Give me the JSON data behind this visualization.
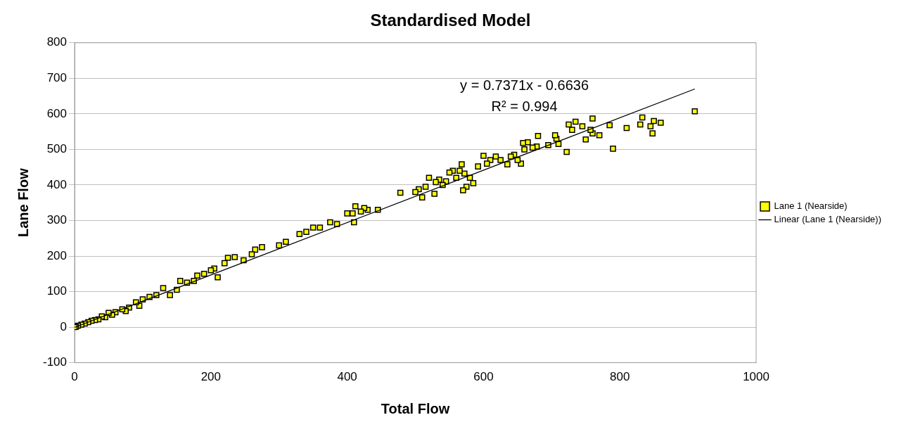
{
  "chart_data": {
    "type": "scatter",
    "title": "Standardised Model",
    "xlabel": "Total Flow",
    "ylabel": "Lane Flow",
    "xlim": [
      0,
      1000
    ],
    "xticks": [
      0,
      200,
      400,
      600,
      800,
      1000
    ],
    "ylim": [
      -100,
      800
    ],
    "yticks": [
      -100,
      0,
      100,
      200,
      300,
      400,
      500,
      600,
      700,
      800
    ],
    "grid": "y",
    "legend": "right",
    "marker": "square",
    "annotations": [
      "y = 0.7371x - 0.6636",
      "R² = 0.994"
    ],
    "series": [
      {
        "name": "Lane 1 (Nearside)",
        "color": "#ffff00",
        "x": [
          910,
          860,
          850,
          848,
          845,
          833,
          830,
          810,
          790,
          785,
          770,
          760,
          760,
          757,
          750,
          745,
          735,
          730,
          725,
          722,
          710,
          707,
          705,
          695,
          680,
          678,
          672,
          665,
          660,
          658,
          655,
          650,
          645,
          640,
          635,
          625,
          618,
          610,
          605,
          600,
          592,
          585,
          580,
          575,
          572,
          570,
          568,
          565,
          560,
          555,
          550,
          545,
          540,
          535,
          530,
          528,
          520,
          515,
          510,
          505,
          500,
          478,
          445,
          430,
          425,
          420,
          412,
          410,
          408,
          400,
          385,
          375,
          360,
          350,
          340,
          330,
          310,
          300,
          275,
          265,
          260,
          248,
          235,
          225,
          220,
          210,
          205,
          200,
          190,
          180,
          175,
          165,
          155,
          150,
          140,
          130,
          120,
          110,
          100,
          95,
          90,
          80,
          75,
          70,
          60,
          55,
          50,
          45,
          40,
          35,
          30,
          25,
          20,
          15,
          10,
          5,
          2,
          0
        ],
        "values": [
          607,
          575,
          580,
          545,
          565,
          590,
          570,
          560,
          502,
          568,
          540,
          587,
          545,
          555,
          528,
          565,
          578,
          555,
          570,
          493,
          515,
          530,
          540,
          512,
          538,
          508,
          505,
          520,
          500,
          518,
          460,
          470,
          485,
          480,
          458,
          470,
          480,
          470,
          460,
          482,
          452,
          405,
          420,
          395,
          432,
          385,
          458,
          440,
          420,
          440,
          435,
          410,
          400,
          415,
          408,
          375,
          420,
          395,
          365,
          388,
          380,
          378,
          330,
          330,
          335,
          325,
          340,
          295,
          320,
          320,
          290,
          295,
          280,
          280,
          268,
          262,
          240,
          230,
          225,
          218,
          205,
          188,
          197,
          195,
          180,
          140,
          165,
          160,
          150,
          145,
          130,
          125,
          130,
          105,
          90,
          110,
          90,
          85,
          78,
          60,
          70,
          55,
          45,
          50,
          42,
          35,
          40,
          28,
          30,
          22,
          20,
          18,
          14,
          10,
          7,
          4,
          1,
          0
        ]
      },
      {
        "name": "Linear (Lane 1 (Nearside))",
        "type": "line",
        "color": "#000000",
        "x": [
          0,
          910
        ],
        "values": [
          -0.7,
          670
        ],
        "marker": "none",
        "line_style": "solid"
      }
    ]
  }
}
